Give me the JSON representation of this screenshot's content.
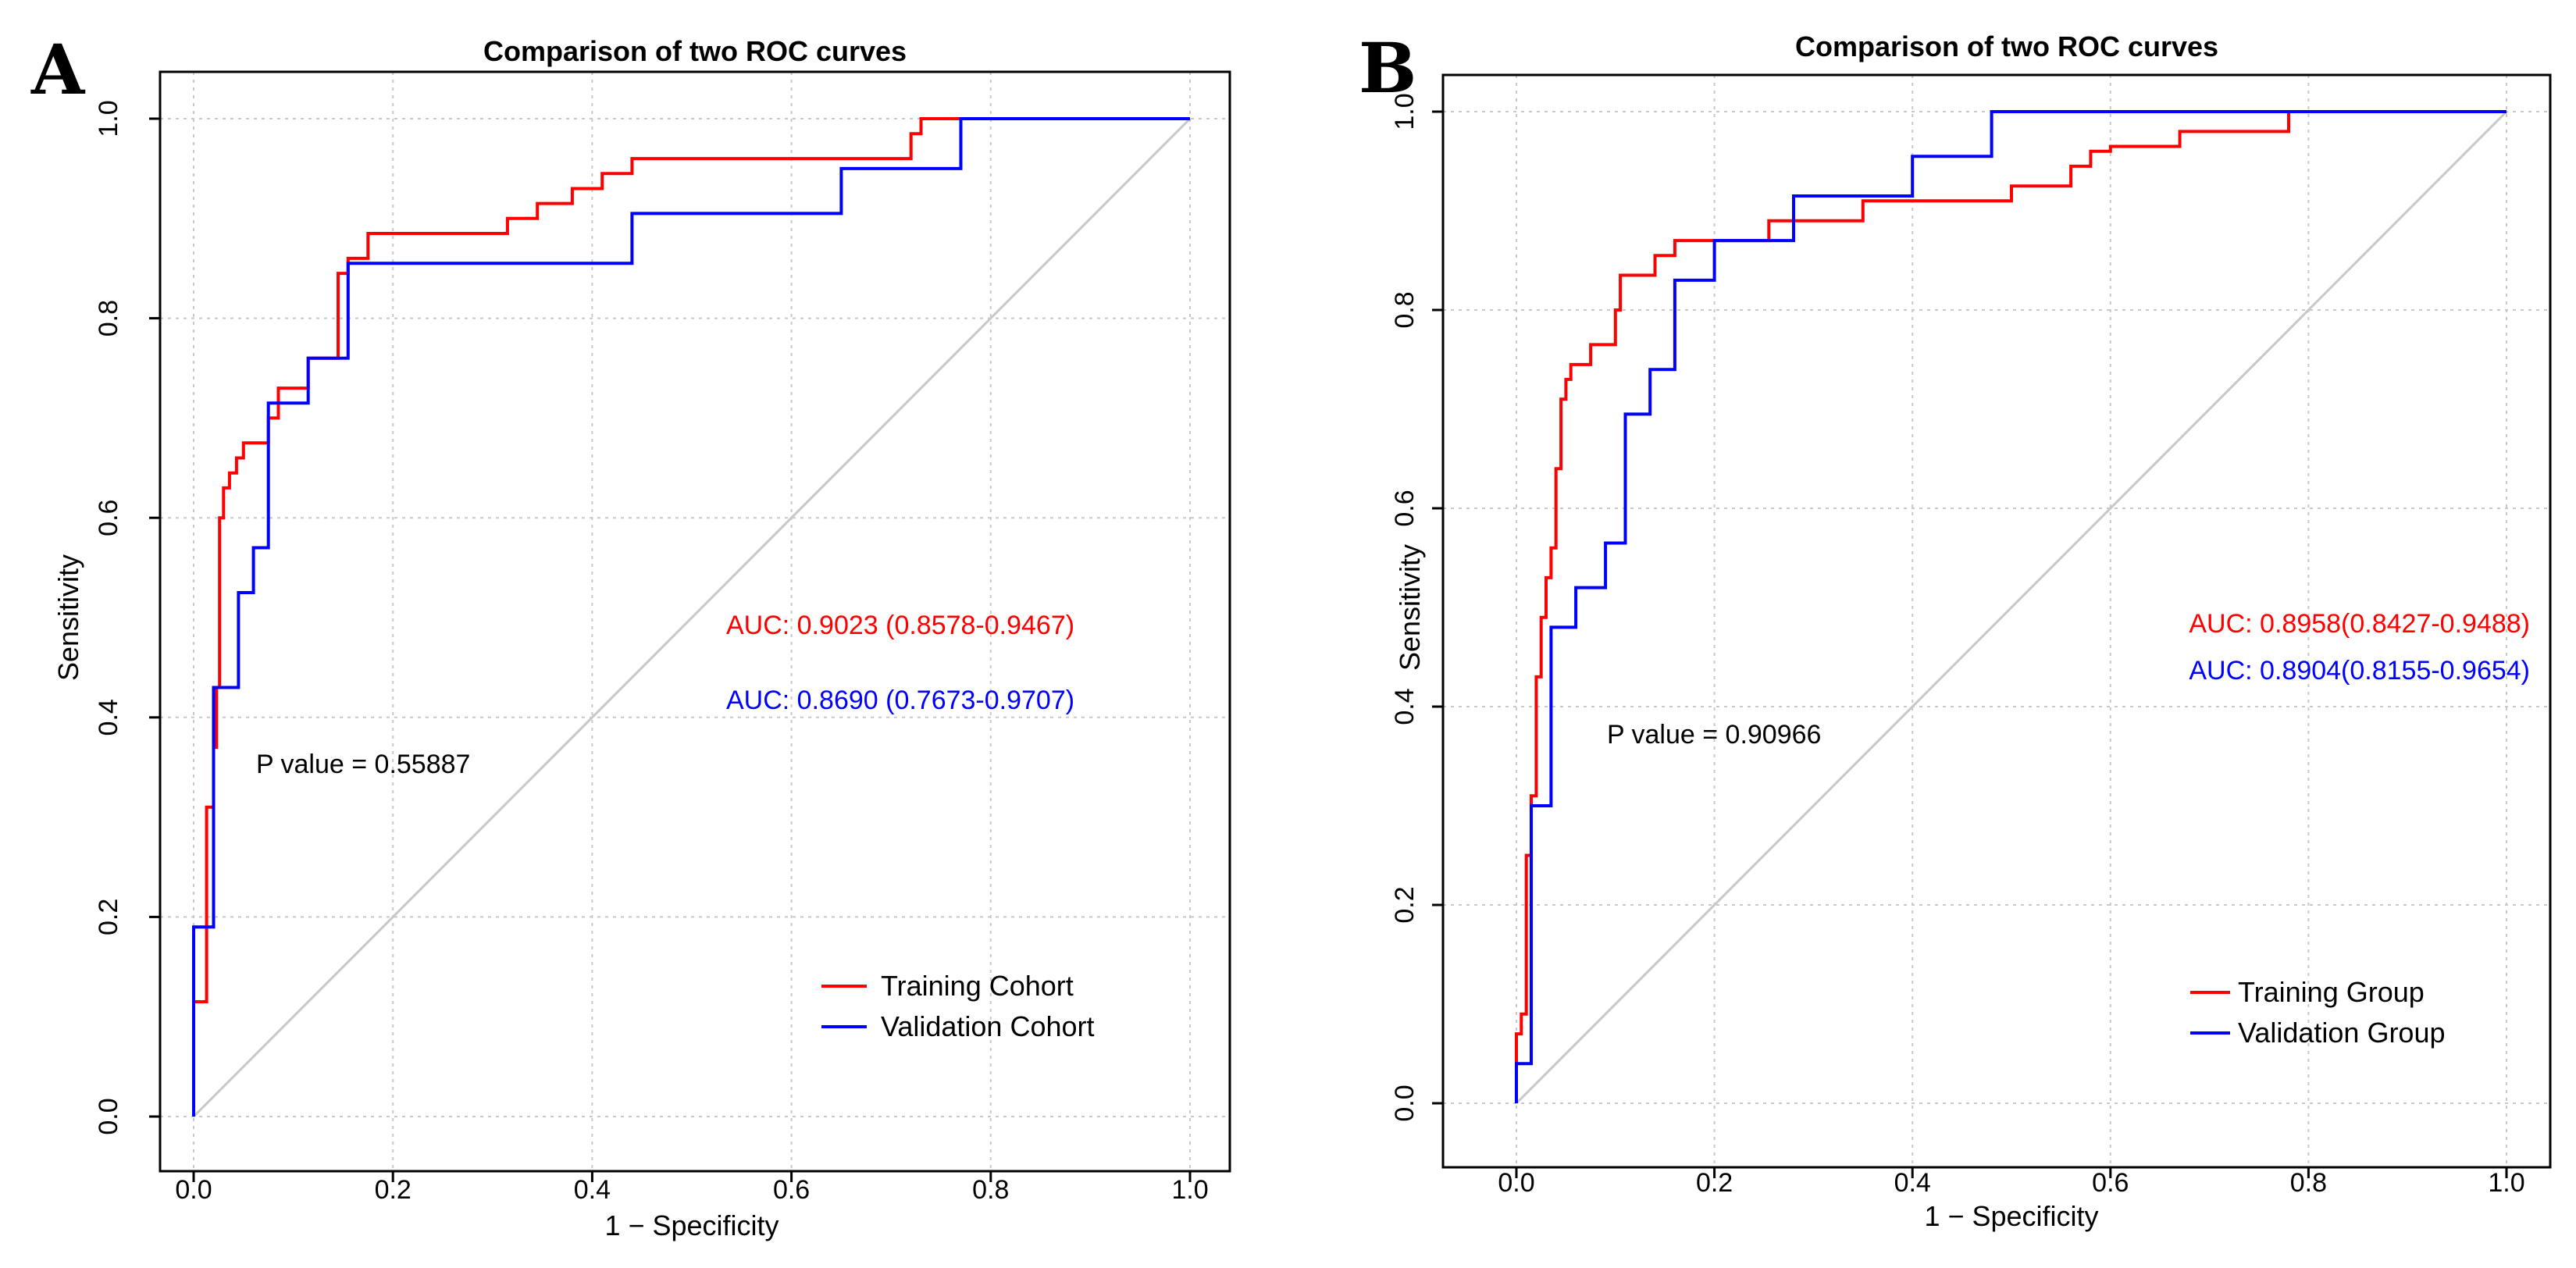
{
  "figure_panels": [
    "A",
    "B"
  ],
  "chart_data": [
    {
      "panel_label": "A",
      "type": "line",
      "title": "Comparison of two ROC curves",
      "xlabel": "1 − Specificity",
      "ylabel": "Sensitivity",
      "xlim": [
        0,
        1
      ],
      "ylim": [
        0,
        1
      ],
      "xticks": [
        "0.0",
        "0.2",
        "0.4",
        "0.6",
        "0.8",
        "1.0"
      ],
      "yticks": [
        "0.0",
        "0.2",
        "0.4",
        "0.6",
        "0.8",
        "1.0"
      ],
      "grid": true,
      "reference_diagonal": true,
      "legend_position": "bottom-right",
      "annotations": [
        {
          "text": "AUC: 0.9023 (0.8578-0.9467)",
          "color": "#ff0000"
        },
        {
          "text": "AUC: 0.8690 (0.7673-0.9707)",
          "color": "#0000ff"
        },
        {
          "text": "P value =  0.55887",
          "color": "#000000"
        }
      ],
      "series": [
        {
          "name": "Training Cohort",
          "color": "#ff0000",
          "x": [
            0,
            0,
            0.013,
            0.013,
            0.02,
            0.02,
            0.023,
            0.023,
            0.026,
            0.026,
            0.03,
            0.03,
            0.036,
            0.036,
            0.043,
            0.043,
            0.05,
            0.05,
            0.056,
            0.056,
            0.075,
            0.075,
            0.085,
            0.085,
            0.095,
            0.095,
            0.115,
            0.115,
            0.145,
            0.145,
            0.155,
            0.155,
            0.175,
            0.175,
            0.315,
            0.315,
            0.345,
            0.345,
            0.38,
            0.38,
            0.41,
            0.41,
            0.44,
            0.44,
            0.72,
            0.72,
            0.73,
            0.73,
            1.0
          ],
          "y": [
            0,
            0.115,
            0.115,
            0.31,
            0.31,
            0.37,
            0.37,
            0.43,
            0.43,
            0.6,
            0.6,
            0.63,
            0.63,
            0.645,
            0.645,
            0.66,
            0.66,
            0.675,
            0.675,
            0.675,
            0.675,
            0.7,
            0.7,
            0.73,
            0.73,
            0.73,
            0.73,
            0.76,
            0.76,
            0.845,
            0.845,
            0.86,
            0.86,
            0.885,
            0.885,
            0.9,
            0.9,
            0.915,
            0.915,
            0.93,
            0.93,
            0.945,
            0.945,
            0.96,
            0.96,
            0.985,
            0.985,
            1.0,
            1.0
          ]
        },
        {
          "name": "Validation Cohort",
          "color": "#0000ff",
          "x": [
            0,
            0,
            0.02,
            0.02,
            0.03,
            0.03,
            0.045,
            0.045,
            0.06,
            0.06,
            0.075,
            0.075,
            0.09,
            0.09,
            0.115,
            0.115,
            0.155,
            0.155,
            0.44,
            0.44,
            0.65,
            0.65,
            0.77,
            0.77,
            1.0
          ],
          "y": [
            0,
            0.19,
            0.19,
            0.43,
            0.43,
            0.43,
            0.43,
            0.525,
            0.525,
            0.57,
            0.57,
            0.715,
            0.715,
            0.715,
            0.715,
            0.76,
            0.76,
            0.855,
            0.855,
            0.905,
            0.905,
            0.95,
            0.95,
            1.0,
            1.0
          ]
        }
      ]
    },
    {
      "panel_label": "B",
      "type": "line",
      "title": "Comparison of two ROC curves",
      "xlabel": "1 − Specificity",
      "ylabel": "Sensitivity",
      "xlim": [
        0,
        1
      ],
      "ylim": [
        0,
        1
      ],
      "xticks": [
        "0.0",
        "0.2",
        "0.4",
        "0.6",
        "0.8",
        "1.0"
      ],
      "yticks": [
        "0.0",
        "0.2",
        "0.4",
        "0.6",
        "0.8",
        "1.0"
      ],
      "grid": true,
      "reference_diagonal": true,
      "legend_position": "bottom-right",
      "annotations": [
        {
          "text": "AUC: 0.8958(0.8427-0.9488)",
          "color": "#ff0000"
        },
        {
          "text": "AUC: 0.8904(0.8155-0.9654)",
          "color": "#0000ff"
        },
        {
          "text": "P value =  0.90966",
          "color": "#000000"
        }
      ],
      "series": [
        {
          "name": "Training Group",
          "color": "#ff0000",
          "x": [
            0,
            0,
            0.005,
            0.005,
            0.01,
            0.01,
            0.015,
            0.015,
            0.02,
            0.02,
            0.025,
            0.025,
            0.03,
            0.03,
            0.035,
            0.035,
            0.04,
            0.04,
            0.045,
            0.045,
            0.05,
            0.05,
            0.055,
            0.055,
            0.06,
            0.06,
            0.075,
            0.075,
            0.085,
            0.085,
            0.1,
            0.1,
            0.105,
            0.105,
            0.14,
            0.14,
            0.16,
            0.16,
            0.255,
            0.255,
            0.35,
            0.35,
            0.5,
            0.5,
            0.56,
            0.56,
            0.58,
            0.58,
            0.6,
            0.6,
            0.67,
            0.67,
            0.78,
            0.78,
            1.0
          ],
          "y": [
            0,
            0.07,
            0.07,
            0.09,
            0.09,
            0.25,
            0.25,
            0.31,
            0.31,
            0.43,
            0.43,
            0.49,
            0.49,
            0.53,
            0.53,
            0.56,
            0.56,
            0.64,
            0.64,
            0.71,
            0.71,
            0.73,
            0.73,
            0.745,
            0.745,
            0.745,
            0.745,
            0.765,
            0.765,
            0.765,
            0.765,
            0.8,
            0.8,
            0.835,
            0.835,
            0.855,
            0.855,
            0.87,
            0.87,
            0.89,
            0.89,
            0.91,
            0.91,
            0.925,
            0.925,
            0.945,
            0.945,
            0.96,
            0.96,
            0.965,
            0.965,
            0.98,
            0.98,
            1.0,
            1.0
          ]
        },
        {
          "name": "Validation Group",
          "color": "#0000ff",
          "x": [
            0,
            0,
            0.015,
            0.015,
            0.035,
            0.035,
            0.06,
            0.06,
            0.09,
            0.09,
            0.11,
            0.11,
            0.135,
            0.135,
            0.16,
            0.16,
            0.2,
            0.2,
            0.28,
            0.28,
            0.4,
            0.4,
            0.48,
            0.48,
            1.0
          ],
          "y": [
            0,
            0.04,
            0.04,
            0.3,
            0.3,
            0.48,
            0.48,
            0.52,
            0.52,
            0.565,
            0.565,
            0.695,
            0.695,
            0.74,
            0.74,
            0.83,
            0.83,
            0.87,
            0.87,
            0.915,
            0.915,
            0.955,
            0.955,
            1.0,
            1.0
          ]
        }
      ]
    }
  ]
}
